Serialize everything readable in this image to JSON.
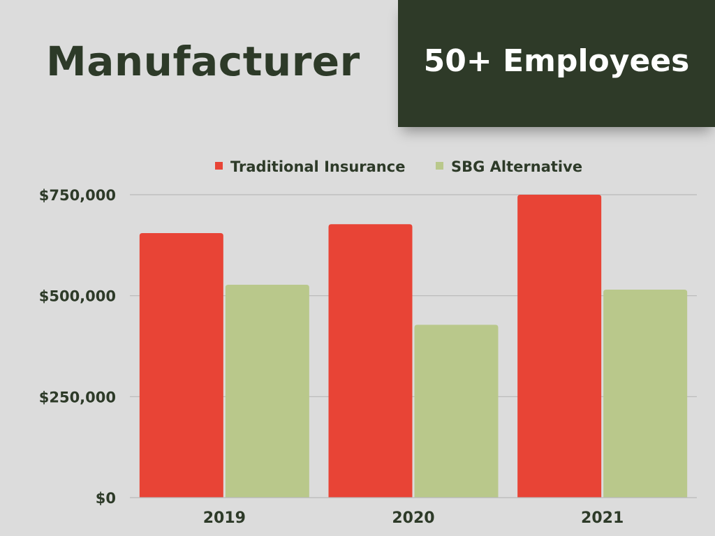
{
  "header": {
    "title": "Manufacturer",
    "badge": "50+ Employees"
  },
  "colors": {
    "background": "#dcdcdc",
    "title_text": "#2d3a28",
    "badge_background": "#2e3a28",
    "badge_text": "#ffffff",
    "gridline": "#b8b8b8"
  },
  "chart_data": {
    "type": "bar",
    "title": "",
    "xlabel": "",
    "ylabel": "",
    "categories": [
      "2019",
      "2020",
      "2021"
    ],
    "series": [
      {
        "name": "Traditional Insurance",
        "color": "#e84436",
        "values": [
          655000,
          677000,
          750000
        ]
      },
      {
        "name": "SBG Alternative",
        "color": "#b9c88b",
        "values": [
          527000,
          428000,
          515000
        ]
      }
    ],
    "ylim": [
      0,
      750000
    ],
    "yticks": [
      0,
      250000,
      500000,
      750000
    ],
    "ytick_labels": [
      "$0",
      "$250,000",
      "$500,000",
      "$750,000"
    ],
    "grid": true,
    "legend_position": "top-center"
  }
}
